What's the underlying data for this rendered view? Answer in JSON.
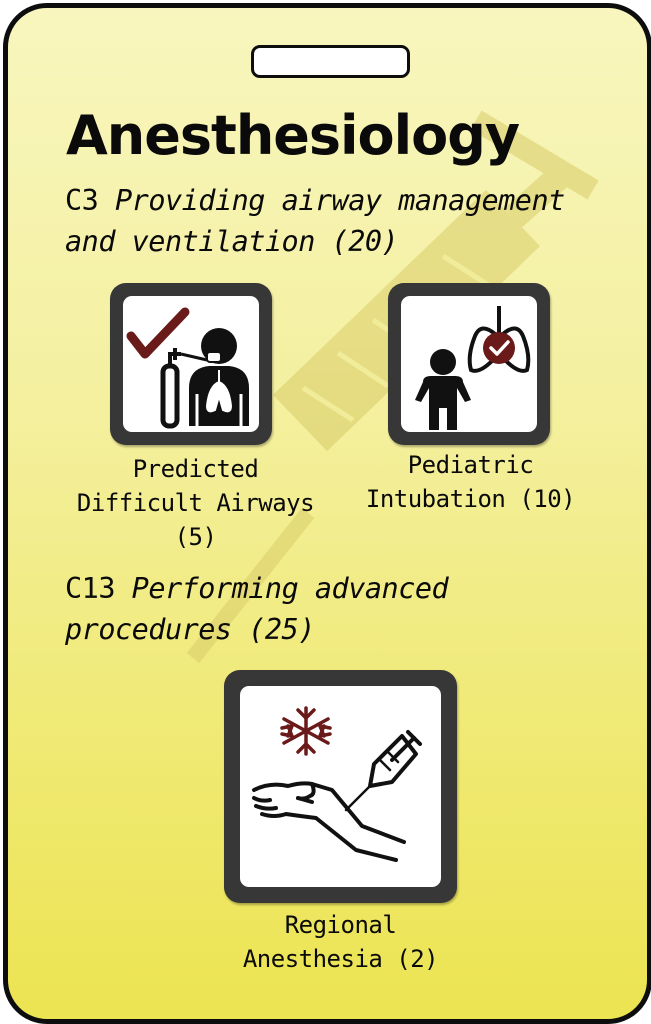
{
  "card": {
    "title": "Anesthesiology",
    "watermark_icon": "syringe-icon"
  },
  "sections": [
    {
      "code": "C3",
      "description": "Providing airway management and ventilation (20)",
      "items": [
        {
          "label": "Predicted Difficult Airways (5)",
          "icon": "airway-patient-oxygen-icon"
        },
        {
          "label": "Pediatric Intubation (10)",
          "icon": "child-lungs-icon"
        }
      ]
    },
    {
      "code": "C13",
      "description": "Performing advanced procedures (25)",
      "items": [
        {
          "label": "Regional Anesthesia (2)",
          "icon": "arm-injection-icon"
        }
      ]
    }
  ],
  "colors": {
    "accent": "#6b1a1a",
    "tile_frame": "#373737",
    "card_top": "#f8f6be",
    "card_bottom": "#ece451"
  }
}
